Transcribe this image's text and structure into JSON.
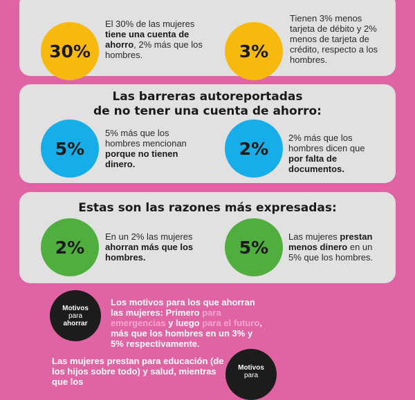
{
  "card1": {
    "left_value": "30%",
    "left_text": {
      "a": "El 30% de las mujeres ",
      "b": "tiene una cuenta de ahorro",
      "c": ", 2% más que los hombres."
    },
    "right_value": "3%",
    "right_text": "Tienen 3% menos tarjeta de débito y 2% menos de tarjeta de crédito, respecto a los hombres."
  },
  "card2": {
    "heading_line1": "Las barreras autoreportadas",
    "heading_line2": "de no tener una cuenta de ahorro:",
    "left_value": "5%",
    "left_text": {
      "a": "5% más que los hombres mencionan ",
      "b": "porque no tienen dinero."
    },
    "right_value": "2%",
    "right_text": {
      "a": "2% más que los hombres dicen que ",
      "b": "por falta de documentos."
    }
  },
  "card3": {
    "heading": "Estas son las razones más expresadas:",
    "left_value": "2%",
    "left_text": {
      "a": "En un 2% las mujeres ",
      "b": "ahorran más que los hombres."
    },
    "right_value": "5%",
    "right_text": {
      "a": "Las mujeres ",
      "b": "prestan menos dinero",
      "c": " en un 5% que los hombres."
    }
  },
  "motivos_ahorrar": {
    "circle_line1": "Motivos",
    "circle_line2": "para",
    "circle_line3": "ahorrar",
    "text_a": "Los motivos para los que ahorran las mujeres: Primero ",
    "hl1": "para emergencias",
    "text_b": " y luego ",
    "hl2": "para el futuro",
    "text_c": ", más que los hombres en un 3% y 5% respectivamente."
  },
  "motivos_prestar": {
    "circle_line1": "Motivos",
    "circle_line2": "para",
    "text_a": "Las mujeres prestan para educación (de los hijos sobre todo) y salud",
    "text_b": ", mientras que los"
  }
}
